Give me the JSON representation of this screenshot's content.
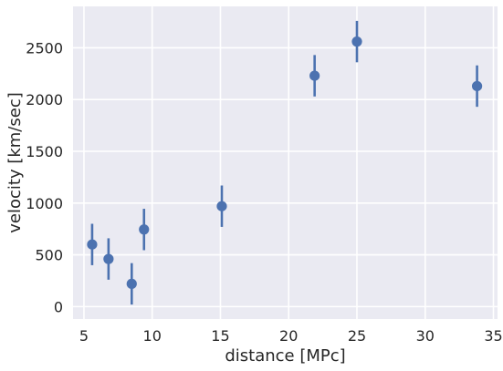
{
  "chart_data": {
    "type": "scatter",
    "title": "",
    "xlabel": "distance [MPc]",
    "ylabel": "velocity [km/sec]",
    "xlim": [
      4.2,
      35.3
    ],
    "ylim": [
      -120,
      2900
    ],
    "xticks": [
      5,
      10,
      15,
      20,
      25,
      30,
      35
    ],
    "yticks": [
      0,
      500,
      1000,
      1500,
      2000,
      2500
    ],
    "grid": true,
    "legend": "none",
    "colors": {
      "background": "#eaeaf2",
      "grid": "#ffffff",
      "marker": "#4c72b0"
    },
    "points": [
      {
        "x": 5.6,
        "y": 600,
        "yerr": 200
      },
      {
        "x": 6.8,
        "y": 460,
        "yerr": 200
      },
      {
        "x": 8.5,
        "y": 220,
        "yerr": 200
      },
      {
        "x": 9.4,
        "y": 745,
        "yerr": 200
      },
      {
        "x": 15.1,
        "y": 970,
        "yerr": 200
      },
      {
        "x": 21.9,
        "y": 2230,
        "yerr": 200
      },
      {
        "x": 25.0,
        "y": 2560,
        "yerr": 200
      },
      {
        "x": 33.8,
        "y": 2130,
        "yerr": 200
      }
    ]
  }
}
